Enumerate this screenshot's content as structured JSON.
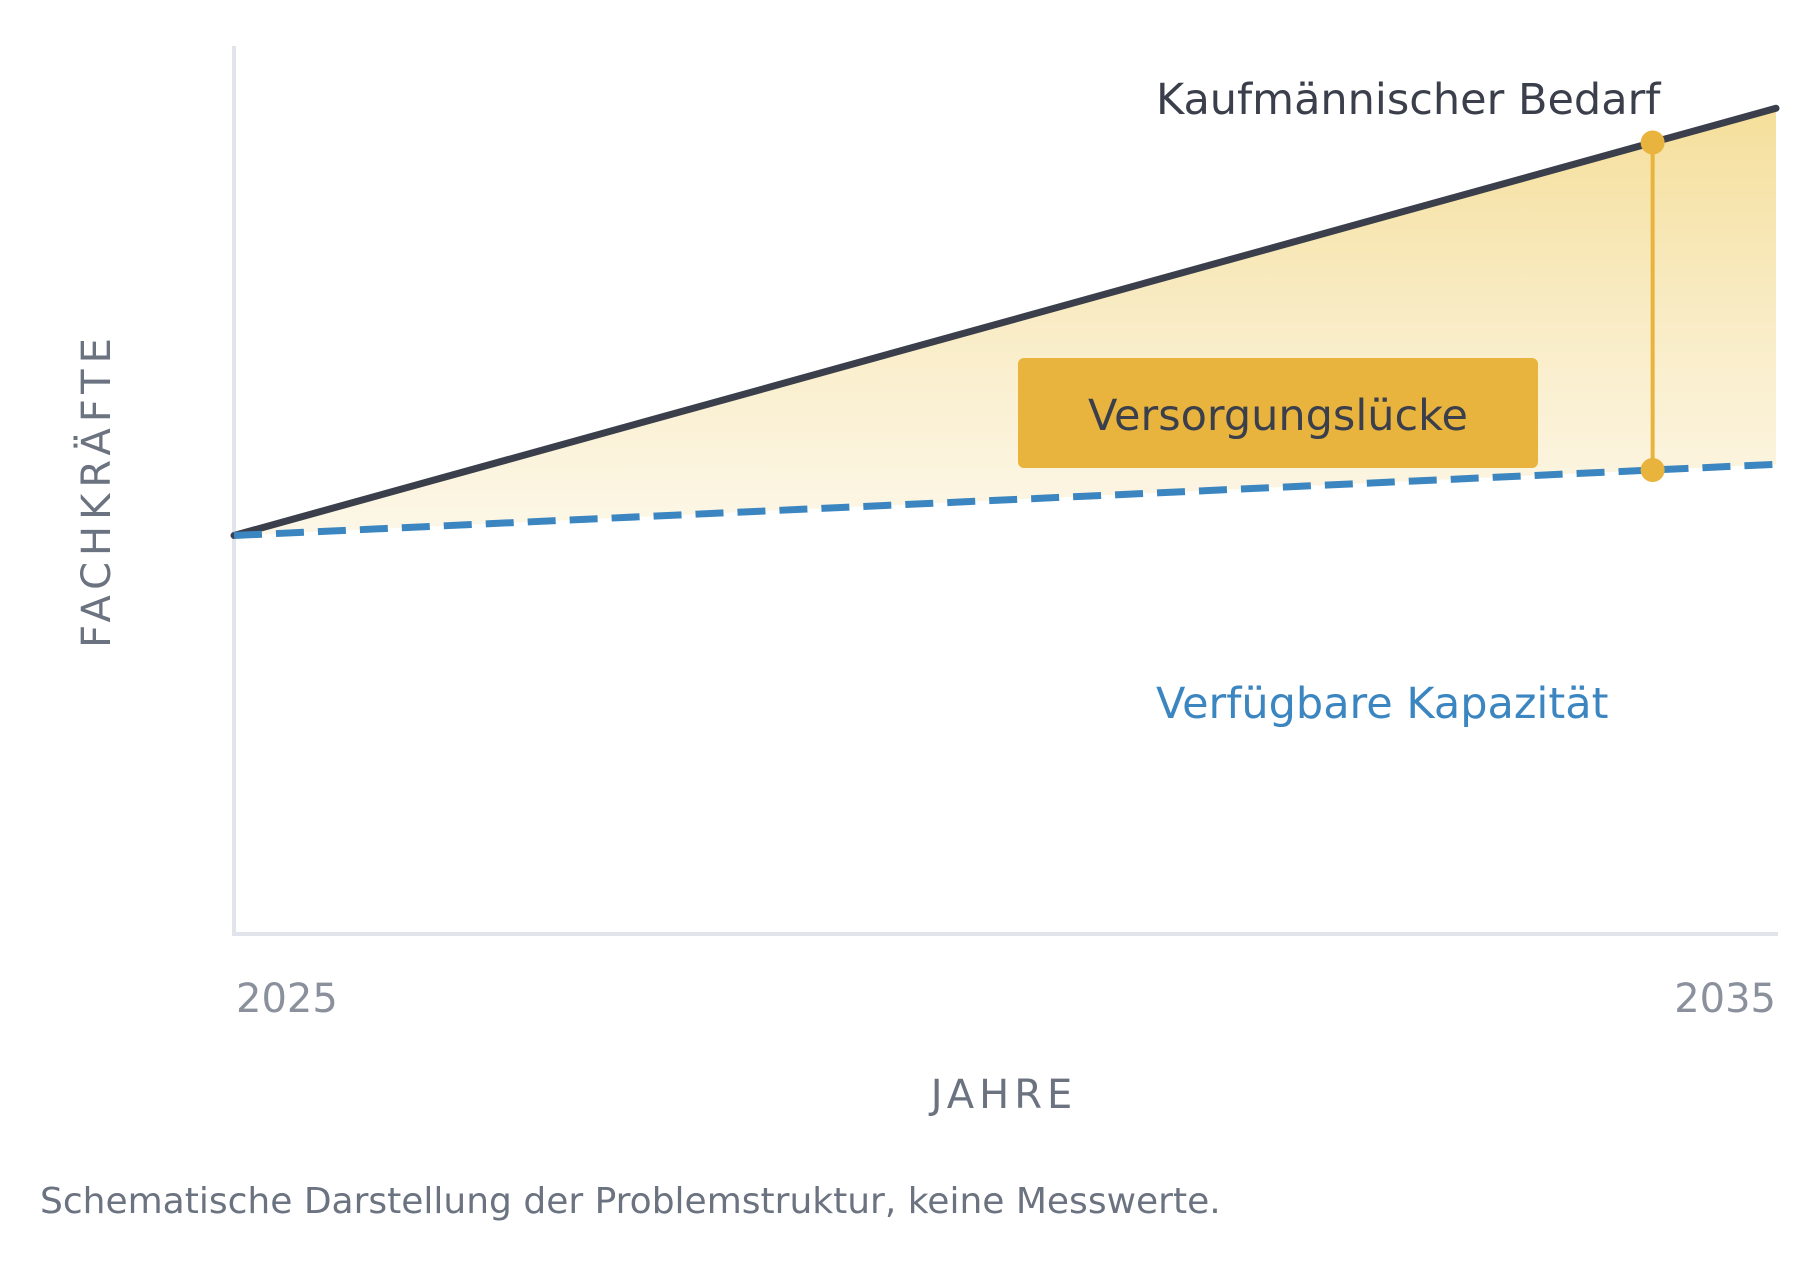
{
  "chart_data": {
    "type": "area",
    "x_start_label": "2025",
    "x_end_label": "2035",
    "xlabel": "JAHRE",
    "ylabel": "FACHKRÄFTE",
    "series": [
      {
        "name": "Kaufmännischer Bedarf",
        "x": [
          2025,
          2035
        ],
        "values": [
          0.45,
          0.93
        ],
        "style": "solid",
        "color": "#3a3f4b"
      },
      {
        "name": "Verfügbare Kapazität",
        "x": [
          2025,
          2035
        ],
        "values": [
          0.45,
          0.53
        ],
        "style": "dashed",
        "color": "#3b86c0"
      }
    ],
    "gap_annotation": {
      "label": "Versorgungslücke",
      "x": 2034.2,
      "color": "#e9b43e"
    },
    "ylim": [
      0,
      1
    ],
    "grid": false,
    "fill_between": true
  },
  "caption": "Schematische Darstellung der Problemstruktur, keine Messwerte."
}
